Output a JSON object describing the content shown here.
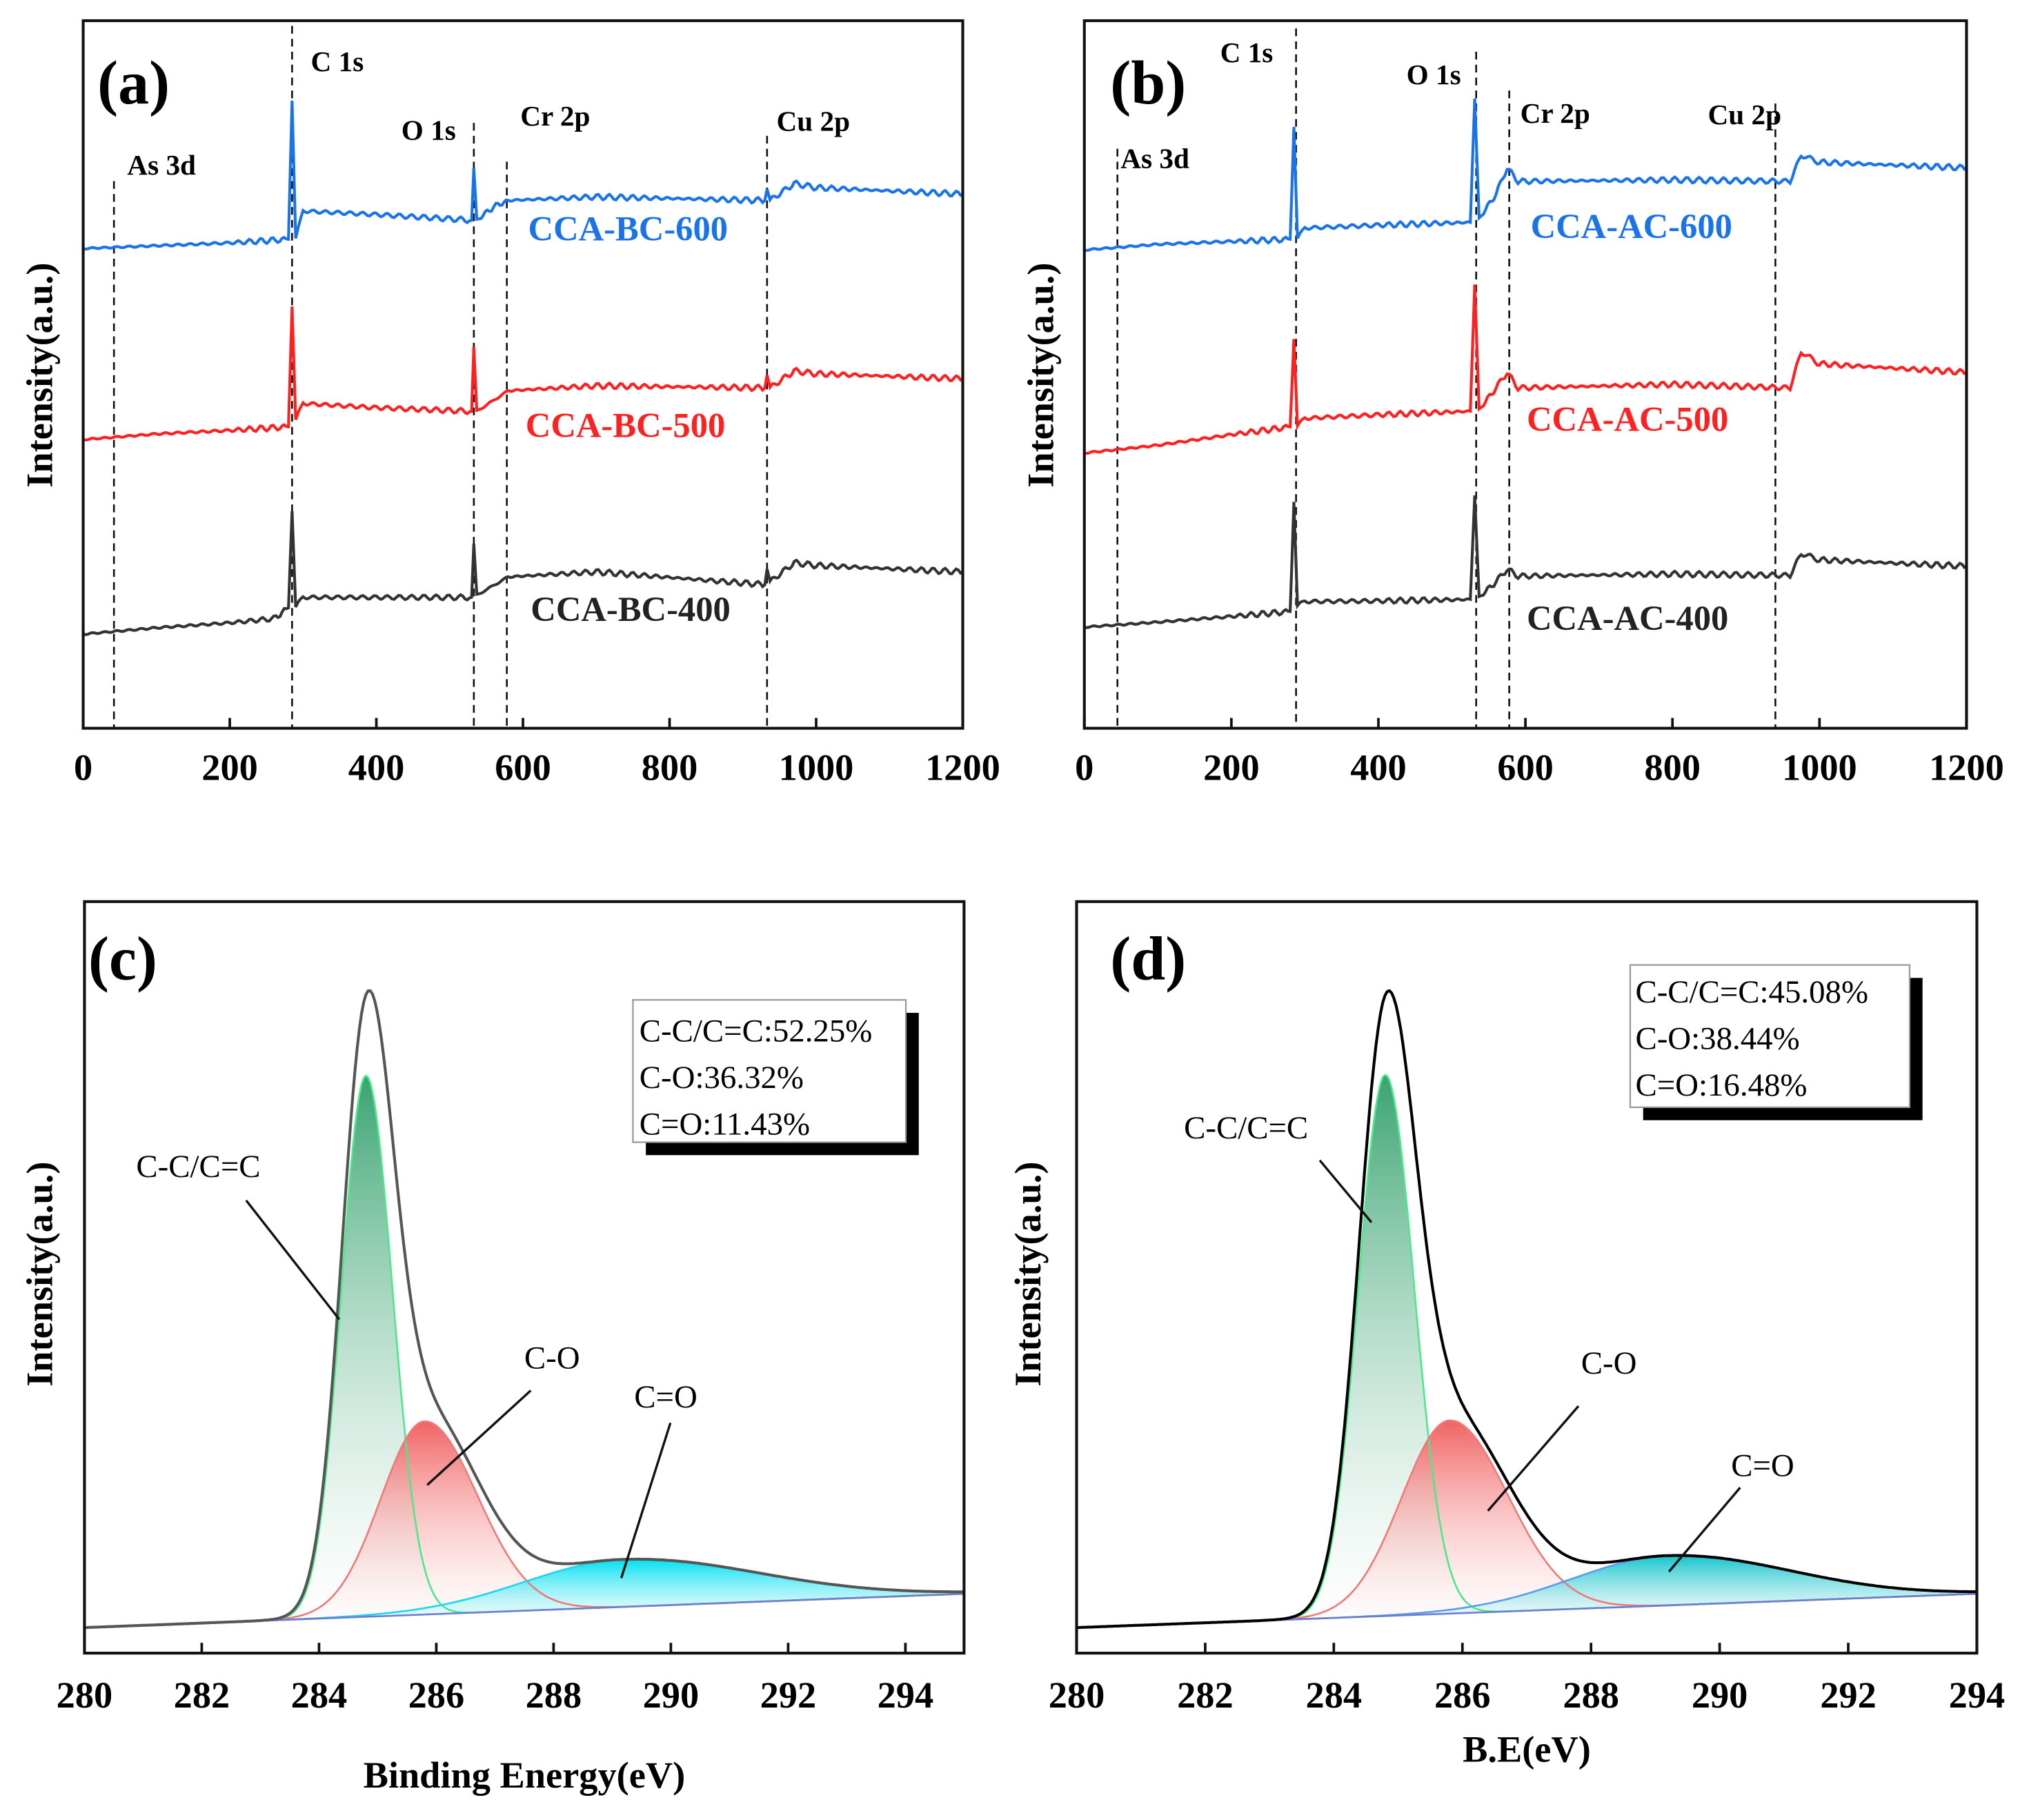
{
  "chart_data": [
    {
      "type": "line",
      "panel": "(a)",
      "xlabel": "",
      "ylabel": "Intensity(a.u.)",
      "xlim": [
        0,
        1200
      ],
      "ylim": [
        0,
        100
      ],
      "xticks": [
        "0",
        "200",
        "400",
        "600",
        "800",
        "1000",
        "1200"
      ],
      "peak_markers": [
        {
          "label": "As 3d",
          "x": 42
        },
        {
          "label": "C 1s",
          "x": 285
        },
        {
          "label": "O 1s",
          "x": 533
        },
        {
          "label": "Cr 2p",
          "x": 578
        },
        {
          "label": "Cu 2p",
          "x": 933
        }
      ],
      "series": [
        {
          "name": "CCA-BC-600",
          "color": "#1a73e8",
          "points": [
            [
              0,
              67.8
            ],
            [
              100,
              68.2
            ],
            [
              200,
              68.6
            ],
            [
              280,
              69.1
            ],
            [
              285,
              88.7
            ],
            [
              290,
              69.1
            ],
            [
              300,
              73.1
            ],
            [
              400,
              72.6
            ],
            [
              530,
              71.8
            ],
            [
              533,
              79.2
            ],
            [
              537,
              71.8
            ],
            [
              560,
              73.7
            ],
            [
              580,
              74.6
            ],
            [
              700,
              75.1
            ],
            [
              930,
              74.6
            ],
            [
              933,
              76.2
            ],
            [
              937,
              74.6
            ],
            [
              970,
              77.0
            ],
            [
              1000,
              76.4
            ],
            [
              1200,
              75.5
            ]
          ]
        },
        {
          "name": "CCA-BC-500",
          "color": "#ff2020",
          "points": [
            [
              0,
              40.8
            ],
            [
              100,
              41.6
            ],
            [
              200,
              42.1
            ],
            [
              280,
              42.6
            ],
            [
              285,
              59.6
            ],
            [
              290,
              43.5
            ],
            [
              300,
              45.9
            ],
            [
              400,
              45.3
            ],
            [
              530,
              44.8
            ],
            [
              533,
              53.9
            ],
            [
              537,
              44.8
            ],
            [
              580,
              47.7
            ],
            [
              700,
              48.4
            ],
            [
              930,
              48.1
            ],
            [
              933,
              49.9
            ],
            [
              937,
              48.1
            ],
            [
              970,
              50.5
            ],
            [
              1000,
              50.1
            ],
            [
              1200,
              49.4
            ]
          ]
        },
        {
          "name": "CCA-BC-400",
          "color": "#333333",
          "points": [
            [
              0,
              13.3
            ],
            [
              100,
              14.2
            ],
            [
              200,
              14.9
            ],
            [
              260,
              15.5
            ],
            [
              280,
              17.0
            ],
            [
              285,
              30.7
            ],
            [
              290,
              17.0
            ],
            [
              300,
              18.5
            ],
            [
              400,
              18.5
            ],
            [
              530,
              18.5
            ],
            [
              533,
              26.1
            ],
            [
              537,
              18.8
            ],
            [
              580,
              21.4
            ],
            [
              700,
              22.1
            ],
            [
              930,
              20.3
            ],
            [
              933,
              22.5
            ],
            [
              937,
              20.7
            ],
            [
              970,
              23.4
            ],
            [
              1000,
              23.0
            ],
            [
              1200,
              22.1
            ]
          ]
        }
      ]
    },
    {
      "type": "line",
      "panel": "(b)",
      "xlabel": "",
      "ylabel": "Intensity(a.u.)",
      "xlim": [
        0,
        1200
      ],
      "ylim": [
        0,
        100
      ],
      "xticks": [
        "0",
        "200",
        "400",
        "600",
        "800",
        "1000",
        "1200"
      ],
      "peak_markers": [
        {
          "label": "As 3d",
          "x": 45
        },
        {
          "label": "C 1s",
          "x": 288
        },
        {
          "label": "O 1s",
          "x": 533
        },
        {
          "label": "Cr 2p",
          "x": 578
        },
        {
          "label": "Cu 2p",
          "x": 940
        }
      ],
      "series": [
        {
          "name": "CCA-AC-600",
          "color": "#1a73e8",
          "points": [
            [
              0,
              67.6
            ],
            [
              100,
              68.4
            ],
            [
              200,
              68.8
            ],
            [
              280,
              69.1
            ],
            [
              285,
              85.0
            ],
            [
              290,
              69.1
            ],
            [
              300,
              70.7
            ],
            [
              400,
              71.1
            ],
            [
              525,
              71.5
            ],
            [
              531,
              89.0
            ],
            [
              537,
              72.0
            ],
            [
              560,
              75.5
            ],
            [
              575,
              79.2
            ],
            [
              590,
              77.3
            ],
            [
              800,
              77.5
            ],
            [
              960,
              77.3
            ],
            [
              975,
              81.0
            ],
            [
              1000,
              80.0
            ],
            [
              1200,
              79.2
            ]
          ]
        },
        {
          "name": "CCA-AC-500",
          "color": "#ff2020",
          "points": [
            [
              0,
              38.9
            ],
            [
              100,
              40.0
            ],
            [
              200,
              41.5
            ],
            [
              280,
              42.6
            ],
            [
              285,
              55.0
            ],
            [
              290,
              42.6
            ],
            [
              300,
              43.8
            ],
            [
              400,
              44.3
            ],
            [
              525,
              44.8
            ],
            [
              531,
              62.7
            ],
            [
              537,
              45.0
            ],
            [
              560,
              48.1
            ],
            [
              575,
              50.3
            ],
            [
              590,
              48.1
            ],
            [
              800,
              48.6
            ],
            [
              960,
              48.1
            ],
            [
              975,
              53.2
            ],
            [
              1000,
              51.5
            ],
            [
              1200,
              50.3
            ]
          ]
        },
        {
          "name": "CCA-AC-400",
          "color": "#333333",
          "points": [
            [
              0,
              14.3
            ],
            [
              100,
              15.0
            ],
            [
              200,
              15.8
            ],
            [
              280,
              16.5
            ],
            [
              285,
              32.0
            ],
            [
              290,
              17.2
            ],
            [
              300,
              17.9
            ],
            [
              400,
              18.0
            ],
            [
              525,
              18.2
            ],
            [
              531,
              32.9
            ],
            [
              537,
              18.5
            ],
            [
              560,
              20.7
            ],
            [
              575,
              22.5
            ],
            [
              590,
              21.5
            ],
            [
              800,
              21.8
            ],
            [
              960,
              21.6
            ],
            [
              975,
              24.7
            ],
            [
              1000,
              23.8
            ],
            [
              1200,
              22.9
            ]
          ]
        }
      ]
    },
    {
      "type": "area",
      "panel": "(c)",
      "xlabel": "Binding Energy(eV)",
      "ylabel": "Intensity(a.u.)",
      "xlim": [
        280,
        295
      ],
      "ylim": [
        0,
        100
      ],
      "xticks": [
        "280",
        "282",
        "284",
        "286",
        "288",
        "290",
        "292",
        "294"
      ],
      "background": {
        "start": 3.4,
        "end": 7.9
      },
      "components": [
        {
          "name": "C-C/C=C",
          "center": 284.8,
          "amplitude": 72,
          "sigma_left": 0.42,
          "sigma_right": 0.45,
          "line": "#4de88a",
          "fill": "#2e9e6a"
        },
        {
          "name": "C-O",
          "center": 285.8,
          "amplitude": 25.7,
          "sigma_left": 0.75,
          "sigma_right": 0.9,
          "line": "#f07a7a",
          "fill": "#f05a5a"
        },
        {
          "name": "C=O",
          "center": 289.2,
          "amplitude": 6.3,
          "sigma_left": 1.7,
          "sigma_right": 2.3,
          "line": "#22d3ee",
          "fill": "#00e0f0"
        }
      ],
      "envelope_color": "#555555",
      "legend_box": [
        "C-C/C=C:52.25%",
        "C-O:36.32%",
        "C=O:11.43%"
      ]
    },
    {
      "type": "area",
      "panel": "(d)",
      "xlabel": "B.E(eV)",
      "ylabel": "Intensity(a.u.)",
      "xlim": [
        280,
        294
      ],
      "ylim": [
        0,
        100
      ],
      "xticks": [
        "280",
        "282",
        "284",
        "286",
        "288",
        "290",
        "292",
        "294"
      ],
      "background": {
        "start": 3.4,
        "end": 7.9
      },
      "components": [
        {
          "name": "C-C/C=C",
          "center": 284.8,
          "amplitude": 72,
          "sigma_left": 0.42,
          "sigma_right": 0.45,
          "line": "#4de88a",
          "fill": "#2e9e6a"
        },
        {
          "name": "C-O",
          "center": 285.8,
          "amplitude": 25.7,
          "sigma_left": 0.75,
          "sigma_right": 0.9,
          "line": "#f07a7a",
          "fill": "#f05a5a"
        },
        {
          "name": "C=O",
          "center": 289.2,
          "amplitude": 6.6,
          "sigma_left": 1.5,
          "sigma_right": 1.9,
          "line": "#5b9bef",
          "fill": "#13c4cc"
        }
      ],
      "envelope_color": "#000000",
      "legend_box": [
        "C-C/C=C:45.08%",
        "C-O:38.44%",
        "C=O:16.48%"
      ]
    }
  ]
}
